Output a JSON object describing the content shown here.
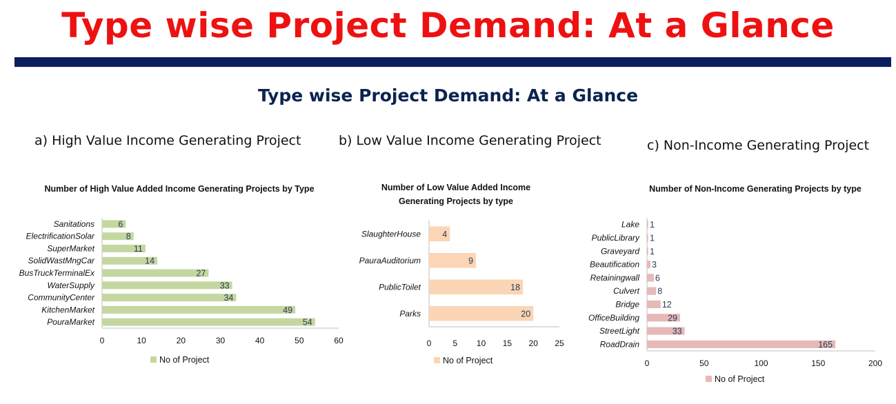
{
  "slide": {
    "title": "Type wise Project Demand: At a Glance",
    "subtitle": "Type wise Project Demand: At a Glance",
    "title_color": "#ee1111",
    "bar_color": "#0b1f5e"
  },
  "sections": {
    "a": "a) High Value Income Generating Project",
    "b": "b) Low Value Income Generating Project",
    "c": "c) Non-Income Generating Project"
  },
  "chart_data": [
    {
      "type": "bar",
      "orientation": "horizontal",
      "title": "Number of High Value Added Income Generating Projects by Type",
      "categories": [
        "Sanitations",
        "ElectrificationSolar",
        "SuperMarket",
        "SolidWastMngCar",
        "BusTruckTerminalEx",
        "WaterSupply",
        "CommunityCenter",
        "KitchenMarket",
        "PouraMarket"
      ],
      "series": [
        {
          "name": "No of Project",
          "values": [
            6,
            8,
            11,
            14,
            27,
            33,
            34,
            49,
            54
          ],
          "color": "#c4d7a0"
        }
      ],
      "xlim": [
        0,
        60
      ],
      "xticks": [
        0,
        10,
        20,
        30,
        40,
        50,
        60
      ],
      "legend": "bottom"
    },
    {
      "type": "bar",
      "orientation": "horizontal",
      "title": [
        "Number of Low Value Added Income",
        "Generating Projects by type"
      ],
      "categories": [
        "SlaughterHouse",
        "PauraAuditorium",
        "PublicToilet",
        "Parks"
      ],
      "series": [
        {
          "name": "No of Project",
          "values": [
            4,
            9,
            18,
            20
          ],
          "color": "#fbd5b5"
        }
      ],
      "xlim": [
        0,
        25
      ],
      "xticks": [
        0,
        5,
        10,
        15,
        20,
        25
      ],
      "legend": "bottom"
    },
    {
      "type": "bar",
      "orientation": "horizontal",
      "title": "Number of Non-Income Generating Projects by type",
      "categories": [
        "Lake",
        "PublicLibrary",
        "Graveyard",
        "Beautification",
        "Retainingwall",
        "Culvert",
        "Bridge",
        "OfficeBuilding",
        "StreetLight",
        "RoadDrain"
      ],
      "series": [
        {
          "name": "No of Project",
          "values": [
            1,
            1,
            1,
            3,
            6,
            8,
            12,
            29,
            33,
            165
          ],
          "color": "#e6b9b8"
        }
      ],
      "xlim": [
        0,
        200
      ],
      "xticks": [
        0,
        50,
        100,
        150,
        200
      ],
      "legend": "bottom"
    }
  ]
}
